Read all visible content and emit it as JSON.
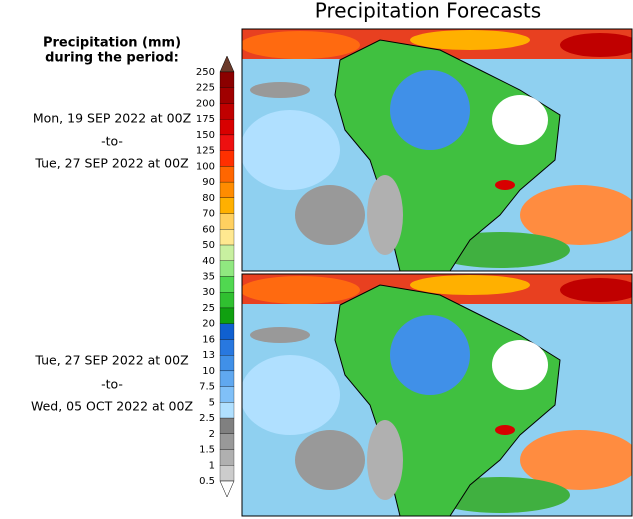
{
  "header": {
    "title": "Precipitation Forecasts"
  },
  "legend": {
    "title_lines": [
      "Precipitation (mm)",
      "during the period:"
    ]
  },
  "periods": [
    {
      "start": "Mon, 19 SEP 2022 at 00Z",
      "separator": "-to-",
      "end": "Tue, 27 SEP 2022 at 00Z"
    },
    {
      "start": "Tue, 27 SEP 2022 at 00Z",
      "separator": "-to-",
      "end": "Wed, 05 OCT 2022 at 00Z"
    }
  ],
  "colorbar": {
    "levels": [
      250,
      225,
      200,
      175,
      150,
      125,
      100,
      90,
      80,
      70,
      60,
      50,
      40,
      35,
      30,
      25,
      20,
      16,
      13,
      10,
      7.5,
      5,
      2.5,
      2,
      1.5,
      1,
      0.5
    ],
    "colors": [
      "#6b3a2a",
      "#8b0000",
      "#a00000",
      "#c00000",
      "#d80000",
      "#ee1010",
      "#ff3000",
      "#ff6600",
      "#ff8c00",
      "#ffb000",
      "#ffd060",
      "#ffe890",
      "#c8f0a0",
      "#90e880",
      "#50d850",
      "#30c030",
      "#10a010",
      "#1060d0",
      "#2878e0",
      "#4090e8",
      "#60a8f0",
      "#80c0f8",
      "#b0e0ff",
      "#808080",
      "#999999",
      "#b0b0b0",
      "#cccccc",
      "#ffffff"
    ]
  }
}
